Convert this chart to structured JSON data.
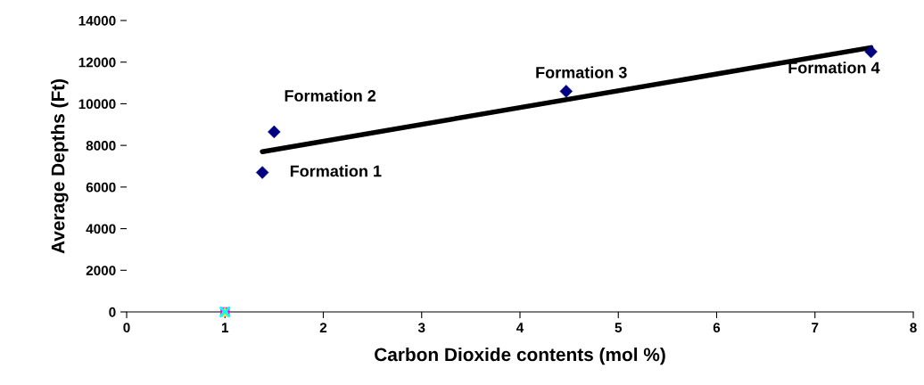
{
  "chart_data": {
    "type": "scatter",
    "xlabel": "Carbon Dioxide contents (mol %)",
    "ylabel": "Average Depths (Ft)",
    "series": [
      {
        "color": "#000080",
        "marker": "diamond",
        "x": [
          1.38,
          1.5,
          4.47,
          7.57
        ],
        "values": [
          6700,
          8650,
          10600,
          12500
        ]
      },
      {
        "type": "line",
        "color": "#000000",
        "marker": "none",
        "x": [
          1.38,
          7.57
        ],
        "values": [
          7700,
          12700
        ]
      },
      {
        "color": "#ff00ff",
        "marker": "square",
        "x": [
          1
        ],
        "values": [
          0
        ]
      },
      {
        "color": "#ffff00",
        "marker": "triangle",
        "x": [
          1
        ],
        "values": [
          0
        ]
      },
      {
        "color": "#00ffff",
        "marker": "cross",
        "x": [
          1
        ],
        "values": [
          0
        ]
      }
    ],
    "annotations": [
      {
        "text": "Formation 1",
        "x": 1.38,
        "y": 6700
      },
      {
        "text": "Formation 2",
        "x": 1.5,
        "y": 8650
      },
      {
        "text": "Formation 3",
        "x": 4.47,
        "y": 10600
      },
      {
        "text": "Formation 4",
        "x": 7.57,
        "y": 12500
      }
    ],
    "xlim": [
      0,
      8
    ],
    "xticks": [
      0,
      1,
      2,
      3,
      4,
      5,
      6,
      7,
      8
    ],
    "ylim": [
      0,
      14000
    ],
    "yticks": [
      0,
      2000,
      4000,
      6000,
      8000,
      10000,
      12000,
      14000
    ],
    "grid": false,
    "legend": false
  }
}
